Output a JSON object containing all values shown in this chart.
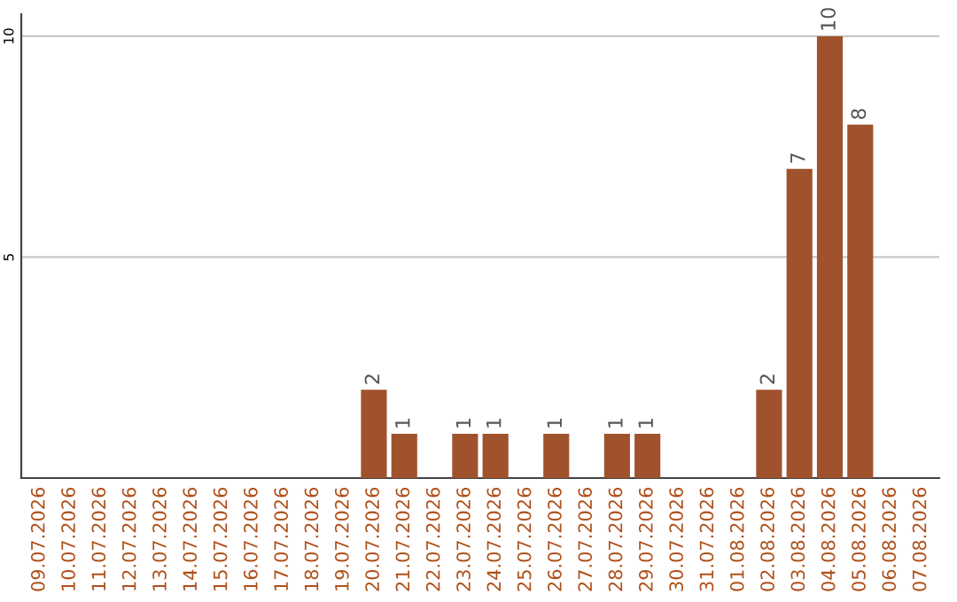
{
  "chart_data": {
    "type": "bar",
    "categories": [
      "09.07.2026",
      "10.07.2026",
      "11.07.2026",
      "12.07.2026",
      "13.07.2026",
      "14.07.2026",
      "15.07.2026",
      "16.07.2026",
      "17.07.2026",
      "18.07.2026",
      "19.07.2026",
      "20.07.2026",
      "21.07.2026",
      "22.07.2026",
      "23.07.2026",
      "24.07.2026",
      "25.07.2026",
      "26.07.2026",
      "27.07.2026",
      "28.07.2026",
      "29.07.2026",
      "30.07.2026",
      "31.07.2026",
      "01.08.2026",
      "02.08.2026",
      "03.08.2026",
      "04.08.2026",
      "05.08.2026",
      "06.08.2026",
      "07.08.2026"
    ],
    "values": [
      0,
      0,
      0,
      0,
      0,
      0,
      0,
      0,
      0,
      0,
      0,
      2,
      1,
      0,
      1,
      1,
      0,
      1,
      0,
      1,
      1,
      0,
      0,
      0,
      2,
      7,
      10,
      8,
      0,
      0
    ],
    "value_labels": [
      null,
      null,
      null,
      null,
      null,
      null,
      null,
      null,
      null,
      null,
      null,
      "2",
      "1",
      null,
      "1",
      "1",
      null,
      "1",
      null,
      "1",
      "1",
      null,
      null,
      null,
      "2",
      "7",
      "10",
      "8",
      null,
      null
    ],
    "color": "#a0522d",
    "ylim": [
      0,
      10.5
    ],
    "yticks": [
      5,
      10
    ],
    "grid": "y"
  }
}
